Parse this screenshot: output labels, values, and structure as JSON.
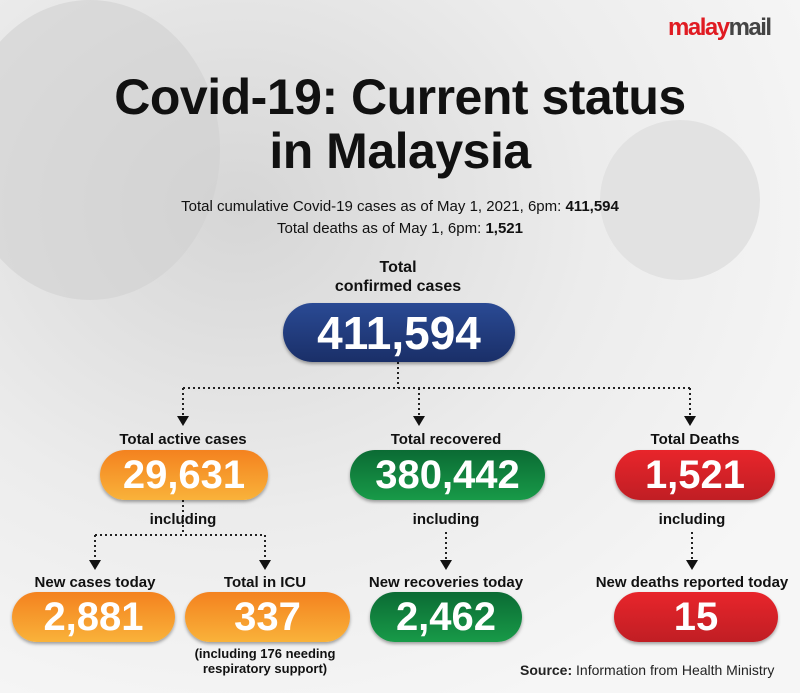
{
  "logo": {
    "part1": "malay",
    "part2": "mail"
  },
  "title": "Covid-19: Current status in Malaysia",
  "title_line1": "Covid-19: Current status",
  "title_line2": "in Malaysia",
  "subtitle1": {
    "text": "Total cumulative Covid-19 cases as of May 1, 2021, 6pm: ",
    "value": "411,594"
  },
  "subtitle2": {
    "text": "Total deaths as of May 1, 6pm: ",
    "value": "1,521"
  },
  "total": {
    "label_line1": "Total",
    "label_line2": "confirmed cases",
    "value": "411,594"
  },
  "active": {
    "label": "Total active cases",
    "value": "29,631",
    "including": "including"
  },
  "recovered": {
    "label": "Total recovered",
    "value": "380,442",
    "including": "including"
  },
  "deaths": {
    "label": "Total Deaths",
    "value": "1,521",
    "including": "including"
  },
  "new_cases": {
    "label": "New cases today",
    "value": "2,881"
  },
  "icu": {
    "label": "Total in ICU",
    "value": "337",
    "note_line1": "(including 176 needing",
    "note_line2": "respiratory support)"
  },
  "new_recoveries": {
    "label": "New recoveries today",
    "value": "2,462"
  },
  "new_deaths": {
    "label": "New deaths reported today",
    "value": "15"
  },
  "source": {
    "label": "Source:",
    "text": " Information from Health Ministry"
  },
  "colors": {
    "navy": "#1f3a7a",
    "orange": "#f4921f",
    "green": "#0f7a3c",
    "red": "#e01b22"
  }
}
